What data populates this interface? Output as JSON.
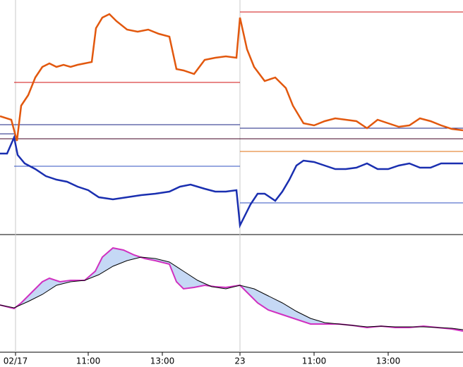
{
  "chart_data": [
    {
      "type": "line",
      "xlim": [
        0,
        656
      ],
      "ylim": [
        0,
        333
      ],
      "x_orange": [
        0,
        16,
        24,
        30,
        40,
        50,
        60,
        70,
        80,
        90,
        100,
        110,
        120,
        130,
        136,
        145,
        155,
        165,
        180,
        195,
        210,
        225,
        240,
        250,
        260,
        275,
        290,
        305,
        320,
        335,
        340,
        350,
        360,
        375,
        390,
        405,
        415,
        430,
        445,
        460,
        475,
        490,
        505,
        520,
        535,
        550,
        565,
        580,
        595,
        610,
        625,
        640,
        656
      ],
      "x_blue": [
        0,
        10,
        20,
        25,
        35,
        50,
        65,
        80,
        95,
        110,
        125,
        140,
        160,
        180,
        200,
        220,
        240,
        255,
        270,
        290,
        305,
        320,
        335,
        340,
        345,
        355,
        365,
        375,
        390,
        400,
        410,
        420,
        430,
        445,
        460,
        475,
        490,
        505,
        520,
        535,
        550,
        565,
        580,
        595,
        610,
        625,
        640,
        656
      ],
      "series": [
        {
          "color": "#e2580e",
          "values": [
            168,
            163,
            133,
            183,
            198,
            223,
            238,
            243,
            238,
            241,
            238,
            241,
            243,
            245,
            293,
            308,
            313,
            303,
            291,
            288,
            291,
            285,
            281,
            235,
            233,
            228,
            248,
            251,
            253,
            251,
            308,
            263,
            238,
            218,
            223,
            208,
            183,
            158,
            155,
            161,
            165,
            163,
            161,
            151,
            163,
            158,
            153,
            155,
            165,
            161,
            155,
            150,
            148
          ]
        },
        {
          "color": "#1a2fb0",
          "values": [
            115,
            115,
            138,
            113,
            101,
            93,
            83,
            78,
            75,
            68,
            63,
            53,
            50,
            53,
            56,
            58,
            61,
            68,
            71,
            65,
            61,
            61,
            63,
            13,
            23,
            43,
            58,
            58,
            48,
            61,
            78,
            98,
            105,
            103,
            98,
            93,
            93,
            95,
            101,
            93,
            93,
            98,
            101,
            95,
            95,
            101,
            101,
            101
          ]
        }
      ],
      "levels": [
        {
          "value": 216,
          "from": 20,
          "to": 340,
          "color": "#d01010"
        },
        {
          "value": 316,
          "from": 340,
          "to": 656,
          "color": "#d01010"
        },
        {
          "value": 156,
          "from": 0,
          "to": 340,
          "color": "#1a2080"
        },
        {
          "value": 151,
          "from": 340,
          "to": 656,
          "color": "#1a2080"
        },
        {
          "value": 143,
          "from": 0,
          "to": 20,
          "color": "#1a2080"
        },
        {
          "value": 136,
          "from": 0,
          "to": 656,
          "color": "#400020"
        },
        {
          "value": 97,
          "from": 20,
          "to": 340,
          "color": "#3050c0"
        },
        {
          "value": 45,
          "from": 340,
          "to": 656,
          "color": "#3050c0"
        },
        {
          "value": 118,
          "from": 340,
          "to": 656,
          "color": "#e07010"
        }
      ]
    },
    {
      "type": "oscillator",
      "xlim": [
        0,
        656
      ],
      "ylim": [
        0,
        160
      ],
      "x_fast": [
        0,
        20,
        30,
        40,
        50,
        60,
        70,
        85,
        100,
        120,
        135,
        145,
        160,
        175,
        190,
        205,
        220,
        240,
        250,
        260,
        275,
        290,
        305,
        320,
        340,
        350,
        365,
        380,
        395,
        410,
        425,
        440,
        460,
        480,
        500,
        520,
        540,
        560,
        580,
        600,
        620,
        640,
        656
      ],
      "x_slow": [
        0,
        20,
        40,
        60,
        80,
        100,
        120,
        140,
        160,
        180,
        200,
        220,
        240,
        260,
        280,
        300,
        320,
        340,
        360,
        380,
        400,
        420,
        440,
        460,
        480,
        500,
        520,
        540,
        560,
        580,
        600,
        620,
        640,
        656
      ],
      "series": [
        {
          "color": "#d030c0",
          "values": [
            67,
            62,
            70,
            80,
            90,
            100,
            105,
            100,
            102,
            102,
            115,
            135,
            148,
            145,
            138,
            133,
            130,
            125,
            100,
            90,
            92,
            95,
            93,
            92,
            95,
            85,
            70,
            60,
            55,
            50,
            45,
            40,
            40,
            40,
            38,
            35,
            37,
            35,
            35,
            37,
            35,
            33,
            30
          ]
        },
        {
          "color": "#000000",
          "values": [
            67,
            63,
            72,
            82,
            95,
            100,
            102,
            110,
            122,
            130,
            135,
            133,
            128,
            115,
            102,
            93,
            90,
            95,
            90,
            80,
            70,
            58,
            48,
            42,
            40,
            38,
            36,
            37,
            36,
            36,
            36,
            35,
            34,
            32
          ]
        }
      ],
      "fill_color": "#7fa8e8",
      "xticks": [
        {
          "value": 22,
          "label": "02/17"
        },
        {
          "value": 125,
          "label": "11:00"
        },
        {
          "value": 230,
          "label": "13:00"
        },
        {
          "value": 340,
          "label": "23"
        },
        {
          "value": 445,
          "label": "11:00"
        },
        {
          "value": 550,
          "label": "13:00"
        }
      ]
    }
  ]
}
